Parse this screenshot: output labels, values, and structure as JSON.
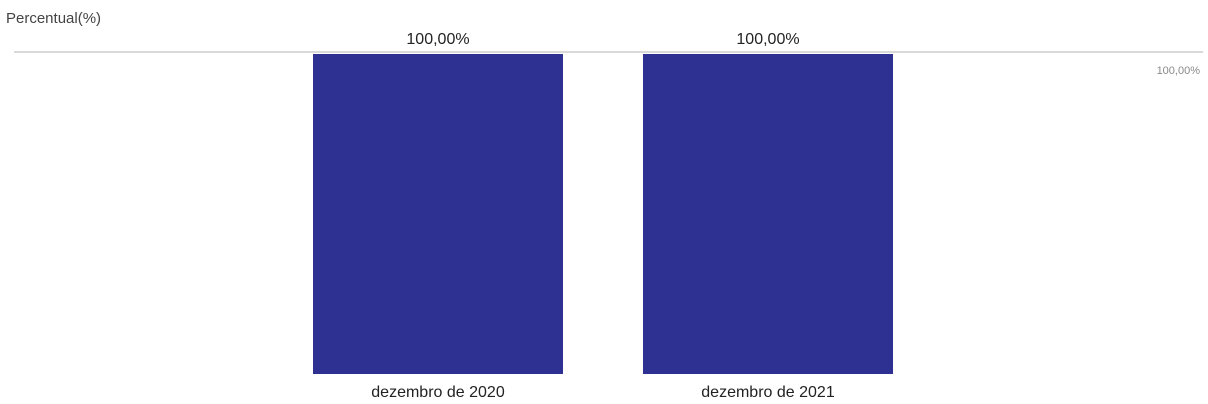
{
  "chart_data": {
    "type": "bar",
    "ylabel": "Percentual(%)",
    "xlabel": "",
    "categories": [
      "dezembro de 2020",
      "dezembro de 2021"
    ],
    "values": [
      100,
      100
    ],
    "data_labels": [
      "100,00%",
      "100,00%"
    ],
    "ylim": [
      0,
      100
    ],
    "reference_line": {
      "value": 100,
      "label": "100,00%"
    },
    "grid": false,
    "legend": "none",
    "colors": {
      "bar": "#2e3192",
      "reference_line": "#d9d9d9",
      "text": "#222222",
      "axis_label": "#444444",
      "reference_label": "#8a8a8a"
    }
  }
}
